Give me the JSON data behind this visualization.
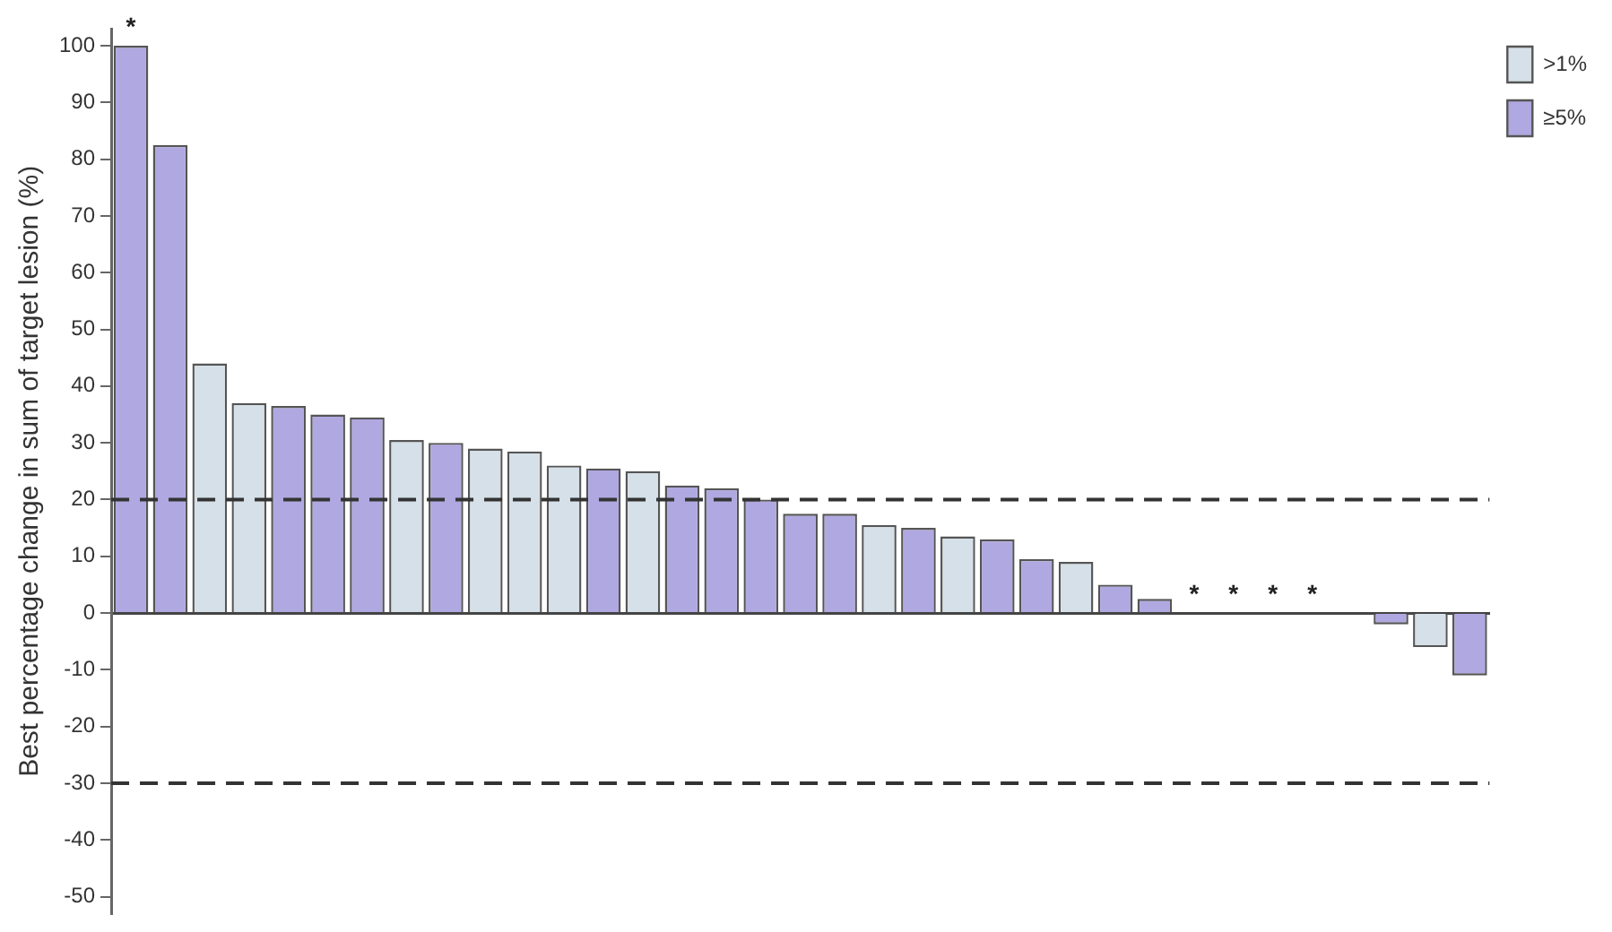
{
  "chart_data": {
    "type": "bar",
    "ylabel": "Best percentage change in sum of target lesion (%)",
    "categories": [
      null,
      null,
      null,
      null,
      null,
      null,
      null,
      null,
      null,
      null,
      null,
      null,
      null,
      null,
      null,
      null,
      null,
      null,
      null,
      null,
      null,
      null,
      null,
      null,
      null,
      null,
      null,
      null,
      null,
      null,
      null,
      null,
      null,
      null,
      null
    ],
    "series": [
      {
        "name": ">1%",
        "color": "#d5e0e8",
        "values": [
          null,
          null,
          44,
          37,
          null,
          null,
          null,
          30.5,
          null,
          29,
          28.5,
          26,
          null,
          25,
          null,
          null,
          null,
          null,
          null,
          15.5,
          null,
          13.5,
          null,
          null,
          9,
          null,
          null,
          null,
          null,
          null,
          null,
          null,
          null,
          -6,
          null
        ]
      },
      {
        "name": "≥5%",
        "color": "#b0a8e0",
        "values": [
          100,
          82.5,
          null,
          null,
          36.5,
          35,
          34.5,
          null,
          30,
          null,
          null,
          null,
          25.5,
          null,
          22.5,
          22,
          20,
          17.5,
          17.5,
          null,
          15,
          null,
          13,
          9.5,
          null,
          5,
          2.5,
          0,
          0,
          0,
          0,
          0,
          -2,
          null,
          -11
        ]
      }
    ],
    "value_labels": [
      "*",
      null,
      null,
      null,
      null,
      null,
      null,
      null,
      null,
      null,
      null,
      null,
      null,
      null,
      null,
      null,
      null,
      null,
      null,
      null,
      null,
      null,
      null,
      null,
      null,
      null,
      null,
      "*",
      "*",
      "*",
      "*",
      null,
      null,
      null,
      null
    ],
    "ylim": [
      -53,
      103
    ],
    "yticks": [
      -50,
      -40,
      -30,
      -20,
      -10,
      0,
      10,
      20,
      30,
      40,
      50,
      60,
      70,
      80,
      90,
      100
    ],
    "ref_lines": [
      {
        "axis": "y",
        "value": 20,
        "line_style": "dashed",
        "color": "#333333"
      },
      {
        "axis": "y",
        "value": -30,
        "line_style": "dashed",
        "color": "#333333"
      }
    ],
    "grid": false,
    "legend": "top right",
    "tick_labels": "y"
  }
}
